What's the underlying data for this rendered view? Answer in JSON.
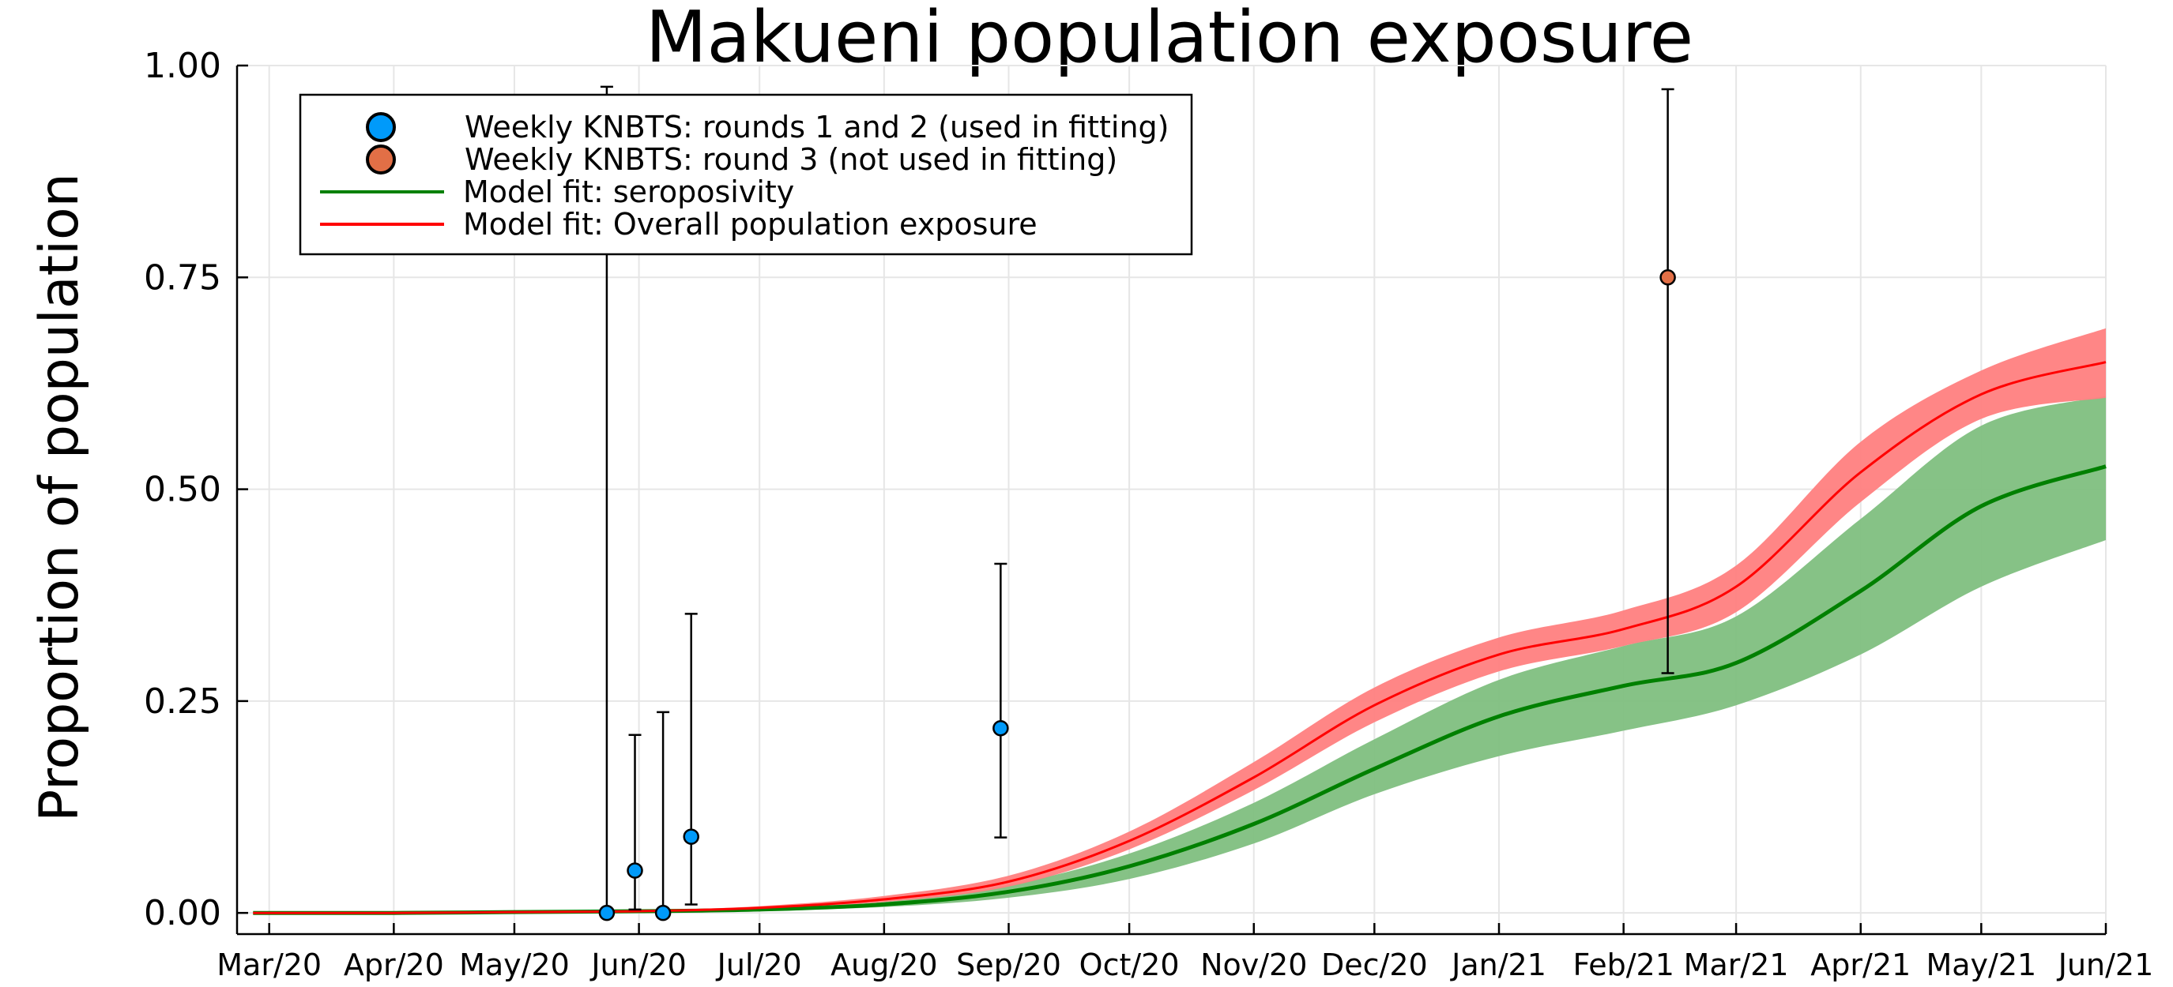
{
  "chart_data": {
    "type": "line",
    "title": "Makueni population exposure",
    "xlabel": "",
    "ylabel": "Proportion of population",
    "x_axis": {
      "type": "date",
      "range": [
        "2020-02-22",
        "2021-06-01"
      ],
      "tick_dates": [
        "2020-03-01",
        "2020-04-01",
        "2020-05-01",
        "2020-06-01",
        "2020-07-01",
        "2020-08-01",
        "2020-09-01",
        "2020-10-01",
        "2020-11-01",
        "2020-12-01",
        "2021-01-01",
        "2021-02-01",
        "2021-03-01",
        "2021-04-01",
        "2021-05-01",
        "2021-06-01"
      ],
      "tick_labels": [
        "Mar/20",
        "Apr/20",
        "May/20",
        "Jun/20",
        "Jul/20",
        "Aug/20",
        "Sep/20",
        "Oct/20",
        "Nov/20",
        "Dec/20",
        "Jan/21",
        "Feb/21",
        "Mar/21",
        "Apr/21",
        "May/21",
        "Jun/21"
      ]
    },
    "y_axis": {
      "range": [
        -0.025,
        1.0
      ],
      "ticks": [
        0.0,
        0.25,
        0.5,
        0.75,
        1.0
      ],
      "tick_labels": [
        "0.00",
        "0.25",
        "0.50",
        "0.75",
        "1.00"
      ]
    },
    "grid": true,
    "legend": {
      "placement": "top-left",
      "entries": [
        {
          "label": "Weekly KNBTS: rounds 1 and 2 (used in fitting)",
          "marker": "circle",
          "color": "#009AFA"
        },
        {
          "label": "Weekly KNBTS: round 3 (not used in fitting)",
          "marker": "circle",
          "color": "#E26F46"
        },
        {
          "label": "Model fit: seroposivity",
          "marker": "line",
          "color": "#008000"
        },
        {
          "label": "Model fit: Overall population exposure",
          "marker": "line",
          "color": "#FF0000"
        }
      ]
    },
    "scatter_series": [
      {
        "name": "Weekly KNBTS: rounds 1 and 2 (used in fitting)",
        "color": "#009AFA",
        "points": [
          {
            "x": "2020-05-24",
            "y": 0.0,
            "lo": 0.0,
            "hi": 0.975
          },
          {
            "x": "2020-05-31",
            "y": 0.05,
            "lo": 0.004,
            "hi": 0.21
          },
          {
            "x": "2020-06-07",
            "y": 0.0,
            "lo": 0.0,
            "hi": 0.237
          },
          {
            "x": "2020-06-14",
            "y": 0.09,
            "lo": 0.01,
            "hi": 0.353
          },
          {
            "x": "2020-08-30",
            "y": 0.218,
            "lo": 0.089,
            "hi": 0.412
          }
        ]
      },
      {
        "name": "Weekly KNBTS: round 3 (not used in fitting)",
        "color": "#E26F46",
        "points": [
          {
            "x": "2021-02-12",
            "y": 0.75,
            "lo": 0.283,
            "hi": 0.972
          }
        ]
      }
    ],
    "line_series": [
      {
        "name": "Model fit: seroposivity",
        "color": "#008000",
        "band_color": "#7FBF7F",
        "x": [
          "2020-02-26",
          "2020-04-01",
          "2020-05-01",
          "2020-06-01",
          "2020-07-01",
          "2020-08-01",
          "2020-09-01",
          "2020-10-01",
          "2020-11-01",
          "2020-12-01",
          "2021-01-01",
          "2021-02-01",
          "2021-03-01",
          "2021-04-01",
          "2021-05-01",
          "2021-06-01"
        ],
        "y": [
          0.0,
          0.0,
          0.001,
          0.002,
          0.004,
          0.01,
          0.025,
          0.055,
          0.105,
          0.17,
          0.232,
          0.268,
          0.295,
          0.38,
          0.48,
          0.527
        ],
        "lower": [
          0.0,
          0.0,
          0.0,
          0.001,
          0.003,
          0.007,
          0.018,
          0.04,
          0.082,
          0.14,
          0.185,
          0.215,
          0.245,
          0.305,
          0.385,
          0.44
        ],
        "upper": [
          0.0,
          0.0,
          0.001,
          0.003,
          0.006,
          0.013,
          0.033,
          0.07,
          0.13,
          0.205,
          0.275,
          0.315,
          0.35,
          0.465,
          0.575,
          0.61
        ]
      },
      {
        "name": "Model fit: Overall population exposure",
        "color": "#FF0000",
        "band_color": "#FF7F7F",
        "x": [
          "2020-02-26",
          "2020-04-01",
          "2020-05-01",
          "2020-06-01",
          "2020-07-01",
          "2020-08-01",
          "2020-09-01",
          "2020-10-01",
          "2020-11-01",
          "2020-12-01",
          "2021-01-01",
          "2021-02-01",
          "2021-03-01",
          "2021-04-01",
          "2021-05-01",
          "2021-06-01"
        ],
        "y": [
          0.0,
          0.0,
          0.001,
          0.002,
          0.006,
          0.016,
          0.037,
          0.085,
          0.16,
          0.245,
          0.305,
          0.335,
          0.385,
          0.52,
          0.612,
          0.65
        ],
        "lower": [
          0.0,
          0.0,
          0.0,
          0.001,
          0.005,
          0.013,
          0.031,
          0.075,
          0.145,
          0.225,
          0.285,
          0.315,
          0.355,
          0.485,
          0.583,
          0.608
        ],
        "upper": [
          0.0,
          0.0,
          0.001,
          0.003,
          0.008,
          0.02,
          0.044,
          0.096,
          0.178,
          0.266,
          0.325,
          0.357,
          0.41,
          0.556,
          0.64,
          0.69
        ]
      }
    ]
  }
}
